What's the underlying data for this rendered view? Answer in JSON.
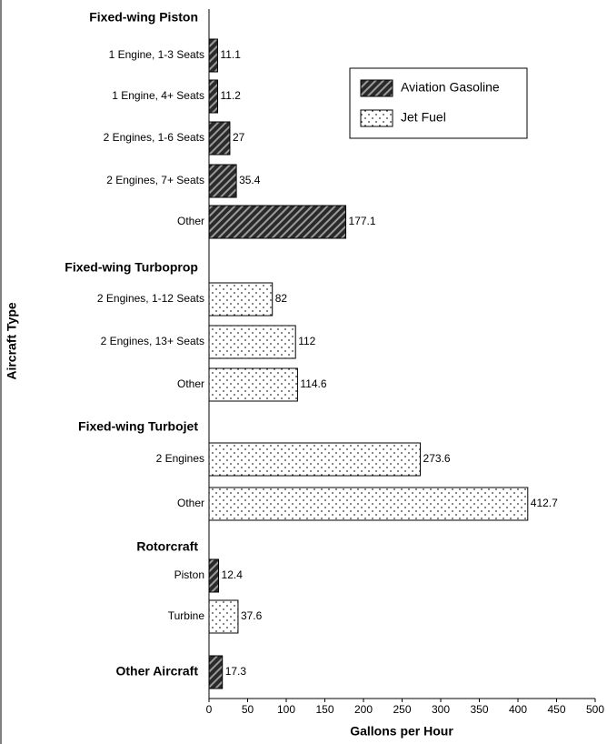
{
  "chart_data": {
    "type": "bar",
    "orientation": "horizontal",
    "categories": [
      "Fixed-wing Piston",
      "1 Engine, 1-3 Seats",
      "1 Engine, 4+ Seats",
      "2 Engines, 1-6 Seats",
      "2 Engines, 7+ Seats",
      "Other",
      "Fixed-wing Turboprop",
      "2 Engines, 1-12 Seats",
      "2 Engines, 13+ Seats",
      "Other",
      "Fixed-wing Turbojet",
      "2 Engines",
      "Other",
      "Rotorcraft",
      "Piston",
      "Turbine",
      "Other Aircraft"
    ],
    "headers": [
      0,
      6,
      10,
      13,
      16
    ],
    "series": [
      {
        "name": "Aviation Gasoline",
        "color": "#2a2a2a",
        "pattern": "hatch",
        "values": [
          null,
          11.1,
          11.2,
          27,
          35.4,
          177.1,
          null,
          null,
          null,
          null,
          null,
          null,
          null,
          null,
          12.4,
          null,
          17.3
        ]
      },
      {
        "name": "Jet Fuel",
        "color": "#ffffff",
        "pattern": "dots",
        "values": [
          null,
          null,
          null,
          null,
          null,
          null,
          null,
          82,
          112,
          114.6,
          null,
          273.6,
          412.7,
          null,
          null,
          37.6,
          null
        ]
      }
    ],
    "xlabel": "Gallons per Hour",
    "ylabel": "Aircraft Type",
    "xlim": [
      0,
      500
    ],
    "xticks": [
      0,
      50,
      100,
      150,
      200,
      250,
      300,
      350,
      400,
      450,
      500
    ],
    "legend": "upper right",
    "grid": false
  }
}
